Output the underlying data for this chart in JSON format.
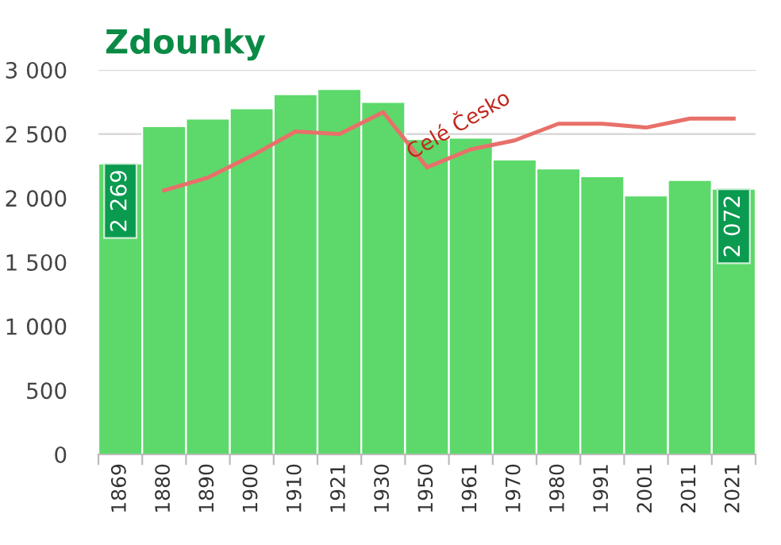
{
  "chart_data": {
    "type": "bar",
    "title": "Zdounky",
    "categories": [
      "1869",
      "1880",
      "1890",
      "1900",
      "1910",
      "1921",
      "1930",
      "1950",
      "1961",
      "1970",
      "1980",
      "1991",
      "2001",
      "2011",
      "2021"
    ],
    "series": [
      {
        "color": "#5cd96a",
        "values": [
          2269,
          2560,
          2620,
          2700,
          2810,
          2850,
          2750,
          2460,
          2470,
          2300,
          2230,
          2170,
          2020,
          2140,
          2072
        ],
        "value_labels": [
          "2 269",
          null,
          null,
          null,
          null,
          null,
          null,
          null,
          null,
          null,
          null,
          null,
          null,
          null,
          "2 072"
        ]
      },
      {
        "type": "line",
        "name": "Celé Česko",
        "color": "#e8706a",
        "values": [
          null,
          2060,
          2160,
          2330,
          2520,
          2500,
          2670,
          2240,
          2380,
          2450,
          2580,
          2580,
          2550,
          2620,
          2620
        ]
      }
    ],
    "ylim": [
      0,
      3000
    ],
    "yticks": [
      {
        "value": 0,
        "label": "0"
      },
      {
        "value": 500,
        "label": "500"
      },
      {
        "value": 1000,
        "label": "1 000"
      },
      {
        "value": 1500,
        "label": "1 500"
      },
      {
        "value": 2000,
        "label": "2 000"
      },
      {
        "value": 2500,
        "label": "2 500"
      },
      {
        "value": 3000,
        "label": "3 000"
      }
    ],
    "grid": "y",
    "legend": false
  }
}
